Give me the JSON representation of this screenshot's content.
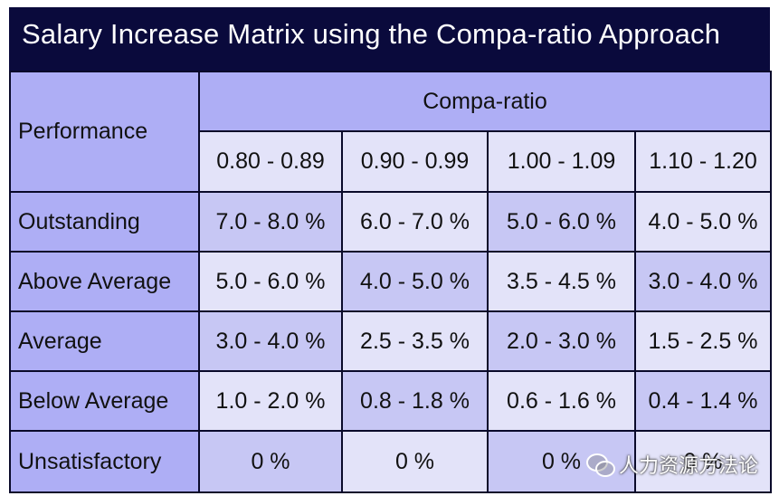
{
  "title": "Salary  Increase Matrix using the Compa-ratio Approach",
  "table": {
    "row_header": "Performance",
    "group_header": "Compa-ratio",
    "ranges": [
      "0.80 - 0.89",
      "0.90 - 0.99",
      "1.00 - 1.09",
      "1.10 - 1.20"
    ],
    "rows": [
      {
        "label": "Outstanding",
        "values": [
          "7.0 - 8.0 %",
          "6.0 - 7.0 %",
          "5.0 - 6.0 %",
          "4.0 - 5.0 %"
        ]
      },
      {
        "label": "Above  Average",
        "values": [
          "5.0 - 6.0 %",
          "4.0 - 5.0 %",
          "3.5 - 4.5 %",
          "3.0 - 4.0 %"
        ]
      },
      {
        "label": "Average",
        "values": [
          "3.0 - 4.0 %",
          "2.5 - 3.5 %",
          "2.0 - 3.0 %",
          "1.5 - 2.5 %"
        ]
      },
      {
        "label": "Below  Average",
        "values": [
          "1.0 - 2.0 %",
          "0.8 - 1.8 %",
          "0.6 - 1.6 %",
          "0.4 - 1.4 %"
        ]
      },
      {
        "label": "Unsatisfactory",
        "values": [
          "0 %",
          "0 %",
          "0 %",
          "0 %"
        ]
      }
    ]
  },
  "watermark": {
    "icon": "wechat-icon",
    "text": "人力资源方法论"
  },
  "colors": {
    "title_bg": "#0a0a3c",
    "header_bg": "#aeaef5",
    "cell_dark": "#c7c7f4",
    "cell_light": "#e3e3f9",
    "border": "#0a0a2a"
  }
}
